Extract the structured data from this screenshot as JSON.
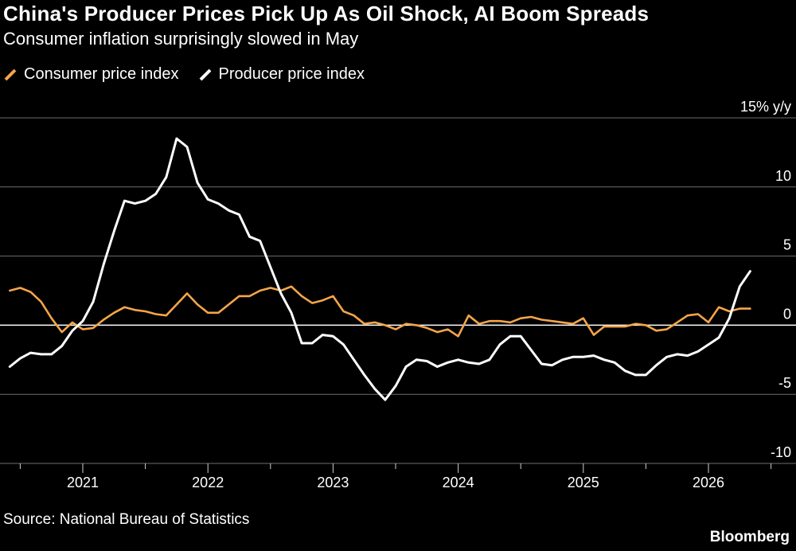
{
  "header": {
    "title": "China's Producer Prices Pick Up As Oil Shock, AI Boom Spreads",
    "subtitle": "Consumer inflation surprisingly slowed in May"
  },
  "footer": {
    "source": "Source: National Bureau of Statistics",
    "brand": "Bloomberg"
  },
  "chart_data": {
    "type": "line",
    "title": "China's Producer Prices Pick Up As Oil Shock, AI Boom Spreads",
    "subtitle": "Consumer inflation surprisingly slowed in May",
    "ylabel": "",
    "y_unit_label": "15% y/y",
    "ylim": [
      -10,
      15
    ],
    "yticks": [
      15,
      10,
      5,
      0,
      -5,
      -10
    ],
    "ytick_labels": [
      "15% y/y",
      "10",
      "5",
      "0",
      "-5",
      "-10"
    ],
    "xlim": [
      "2020-06",
      "2026-07"
    ],
    "xticks": [
      "2021",
      "2022",
      "2023",
      "2024",
      "2025",
      "2026"
    ],
    "grid": true,
    "legend_position": "top-left",
    "series": [
      {
        "name": "Consumer price index",
        "color": "#f5a54a",
        "points": [
          [
            "2020-06",
            2.5
          ],
          [
            "2020-07",
            2.7
          ],
          [
            "2020-08",
            2.4
          ],
          [
            "2020-09",
            1.7
          ],
          [
            "2020-10",
            0.5
          ],
          [
            "2020-11",
            -0.5
          ],
          [
            "2020-12",
            0.2
          ],
          [
            "2021-01",
            -0.3
          ],
          [
            "2021-02",
            -0.2
          ],
          [
            "2021-03",
            0.4
          ],
          [
            "2021-04",
            0.9
          ],
          [
            "2021-05",
            1.3
          ],
          [
            "2021-06",
            1.1
          ],
          [
            "2021-07",
            1.0
          ],
          [
            "2021-08",
            0.8
          ],
          [
            "2021-09",
            0.7
          ],
          [
            "2021-10",
            1.5
          ],
          [
            "2021-11",
            2.3
          ],
          [
            "2021-12",
            1.5
          ],
          [
            "2022-01",
            0.9
          ],
          [
            "2022-02",
            0.9
          ],
          [
            "2022-03",
            1.5
          ],
          [
            "2022-04",
            2.1
          ],
          [
            "2022-05",
            2.1
          ],
          [
            "2022-06",
            2.5
          ],
          [
            "2022-07",
            2.7
          ],
          [
            "2022-08",
            2.5
          ],
          [
            "2022-09",
            2.8
          ],
          [
            "2022-10",
            2.1
          ],
          [
            "2022-11",
            1.6
          ],
          [
            "2022-12",
            1.8
          ],
          [
            "2023-01",
            2.1
          ],
          [
            "2023-02",
            1.0
          ],
          [
            "2023-03",
            0.7
          ],
          [
            "2023-04",
            0.1
          ],
          [
            "2023-05",
            0.2
          ],
          [
            "2023-06",
            0.0
          ],
          [
            "2023-07",
            -0.3
          ],
          [
            "2023-08",
            0.1
          ],
          [
            "2023-09",
            0.0
          ],
          [
            "2023-10",
            -0.2
          ],
          [
            "2023-11",
            -0.5
          ],
          [
            "2023-12",
            -0.3
          ],
          [
            "2024-01",
            -0.8
          ],
          [
            "2024-02",
            0.7
          ],
          [
            "2024-03",
            0.1
          ],
          [
            "2024-04",
            0.3
          ],
          [
            "2024-05",
            0.3
          ],
          [
            "2024-06",
            0.2
          ],
          [
            "2024-07",
            0.5
          ],
          [
            "2024-08",
            0.6
          ],
          [
            "2024-09",
            0.4
          ],
          [
            "2024-10",
            0.3
          ],
          [
            "2024-11",
            0.2
          ],
          [
            "2024-12",
            0.1
          ],
          [
            "2025-01",
            0.5
          ],
          [
            "2025-02",
            -0.7
          ],
          [
            "2025-03",
            -0.1
          ],
          [
            "2025-04",
            -0.1
          ],
          [
            "2025-05",
            -0.1
          ],
          [
            "2025-06",
            0.1
          ],
          [
            "2025-07",
            0.0
          ],
          [
            "2025-08",
            -0.4
          ],
          [
            "2025-09",
            -0.3
          ],
          [
            "2025-10",
            0.2
          ],
          [
            "2025-11",
            0.7
          ],
          [
            "2025-12",
            0.8
          ],
          [
            "2026-01",
            0.2
          ],
          [
            "2026-02",
            1.3
          ],
          [
            "2026-03",
            1.0
          ],
          [
            "2026-04",
            1.2
          ],
          [
            "2026-05",
            1.2
          ]
        ]
      },
      {
        "name": "Producer price index",
        "color": "#ffffff",
        "points": [
          [
            "2020-06",
            -3.0
          ],
          [
            "2020-07",
            -2.4
          ],
          [
            "2020-08",
            -2.0
          ],
          [
            "2020-09",
            -2.1
          ],
          [
            "2020-10",
            -2.1
          ],
          [
            "2020-11",
            -1.5
          ],
          [
            "2020-12",
            -0.4
          ],
          [
            "2021-01",
            0.3
          ],
          [
            "2021-02",
            1.7
          ],
          [
            "2021-03",
            4.4
          ],
          [
            "2021-04",
            6.8
          ],
          [
            "2021-05",
            9.0
          ],
          [
            "2021-06",
            8.8
          ],
          [
            "2021-07",
            9.0
          ],
          [
            "2021-08",
            9.5
          ],
          [
            "2021-09",
            10.7
          ],
          [
            "2021-10",
            13.5
          ],
          [
            "2021-11",
            12.9
          ],
          [
            "2021-12",
            10.3
          ],
          [
            "2022-01",
            9.1
          ],
          [
            "2022-02",
            8.8
          ],
          [
            "2022-03",
            8.3
          ],
          [
            "2022-04",
            8.0
          ],
          [
            "2022-05",
            6.4
          ],
          [
            "2022-06",
            6.1
          ],
          [
            "2022-07",
            4.2
          ],
          [
            "2022-08",
            2.3
          ],
          [
            "2022-09",
            0.9
          ],
          [
            "2022-10",
            -1.3
          ],
          [
            "2022-11",
            -1.3
          ],
          [
            "2022-12",
            -0.7
          ],
          [
            "2023-01",
            -0.8
          ],
          [
            "2023-02",
            -1.4
          ],
          [
            "2023-03",
            -2.5
          ],
          [
            "2023-04",
            -3.6
          ],
          [
            "2023-05",
            -4.6
          ],
          [
            "2023-06",
            -5.4
          ],
          [
            "2023-07",
            -4.4
          ],
          [
            "2023-08",
            -3.0
          ],
          [
            "2023-09",
            -2.5
          ],
          [
            "2023-10",
            -2.6
          ],
          [
            "2023-11",
            -3.0
          ],
          [
            "2023-12",
            -2.7
          ],
          [
            "2024-01",
            -2.5
          ],
          [
            "2024-02",
            -2.7
          ],
          [
            "2024-03",
            -2.8
          ],
          [
            "2024-04",
            -2.5
          ],
          [
            "2024-05",
            -1.4
          ],
          [
            "2024-06",
            -0.8
          ],
          [
            "2024-07",
            -0.8
          ],
          [
            "2024-08",
            -1.8
          ],
          [
            "2024-09",
            -2.8
          ],
          [
            "2024-10",
            -2.9
          ],
          [
            "2024-11",
            -2.5
          ],
          [
            "2024-12",
            -2.3
          ],
          [
            "2025-01",
            -2.3
          ],
          [
            "2025-02",
            -2.2
          ],
          [
            "2025-03",
            -2.5
          ],
          [
            "2025-04",
            -2.7
          ],
          [
            "2025-05",
            -3.3
          ],
          [
            "2025-06",
            -3.6
          ],
          [
            "2025-07",
            -3.6
          ],
          [
            "2025-08",
            -2.9
          ],
          [
            "2025-09",
            -2.3
          ],
          [
            "2025-10",
            -2.1
          ],
          [
            "2025-11",
            -2.2
          ],
          [
            "2025-12",
            -1.9
          ],
          [
            "2026-01",
            -1.4
          ],
          [
            "2026-02",
            -0.9
          ],
          [
            "2026-03",
            0.5
          ],
          [
            "2026-04",
            2.8
          ],
          [
            "2026-05",
            3.9
          ]
        ]
      }
    ]
  }
}
